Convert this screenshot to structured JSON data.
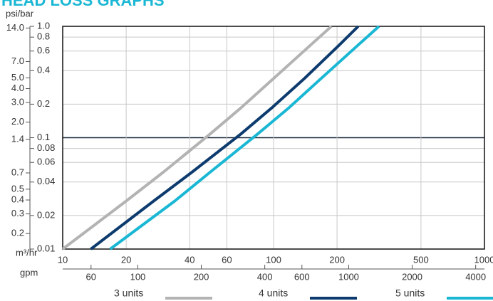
{
  "chart_data": {
    "type": "line",
    "title": "HEAD LOSS GRAPHS",
    "y_axis_label": "psi/bar",
    "x_axis_label": "m³/hr",
    "x2_axis_label": "gpm",
    "log_x": true,
    "log_y": true,
    "grid": true,
    "xlim": [
      10,
      1000
    ],
    "xticks": [
      10,
      20,
      40,
      60,
      100,
      200,
      500,
      1000
    ],
    "x2lim": [
      44.03,
      4403
    ],
    "x2ticks": [
      60,
      100,
      200,
      400,
      600,
      1000,
      2000,
      4000
    ],
    "ylim": [
      0.01,
      1
    ],
    "yticks": [
      0.01,
      0.02,
      0.04,
      0.06,
      0.08,
      0.1,
      0.2,
      0.4,
      0.6,
      0.8,
      {
        "value": 1,
        "label": "1.0"
      }
    ],
    "emphasized_ytick_index": 5,
    "y2lim": [
      0.145,
      14.5
    ],
    "y2ticks": [
      0.2,
      0.3,
      0.4,
      0.5,
      0.7,
      1.4,
      {
        "value": 2,
        "label": "2.0"
      },
      {
        "value": 3,
        "label": "3.0"
      },
      {
        "value": 4,
        "label": "4.0"
      },
      {
        "value": 5,
        "label": "5.0"
      },
      {
        "value": 7,
        "label": "7.0"
      },
      {
        "value": 14,
        "label": "14.0"
      }
    ],
    "series": [
      {
        "name": "3 units",
        "color": "#b3b3b3",
        "x": [
          10,
          20,
          30,
          50,
          70,
          100,
          150,
          188
        ],
        "values": [
          0.01,
          0.027,
          0.049,
          0.108,
          0.185,
          0.34,
          0.68,
          1.0
        ]
      },
      {
        "name": "4 units",
        "color": "#0d3b6e",
        "x": [
          13.6,
          27,
          41,
          70,
          98,
          140,
          205,
          252
        ],
        "values": [
          0.01,
          0.027,
          0.049,
          0.108,
          0.185,
          0.34,
          0.68,
          1.0
        ]
      },
      {
        "name": "5 units",
        "color": "#1ab7d4",
        "x": [
          16.8,
          34,
          50,
          84,
          118,
          168,
          252,
          316
        ],
        "values": [
          0.01,
          0.027,
          0.049,
          0.108,
          0.185,
          0.34,
          0.68,
          1.0
        ]
      }
    ]
  }
}
